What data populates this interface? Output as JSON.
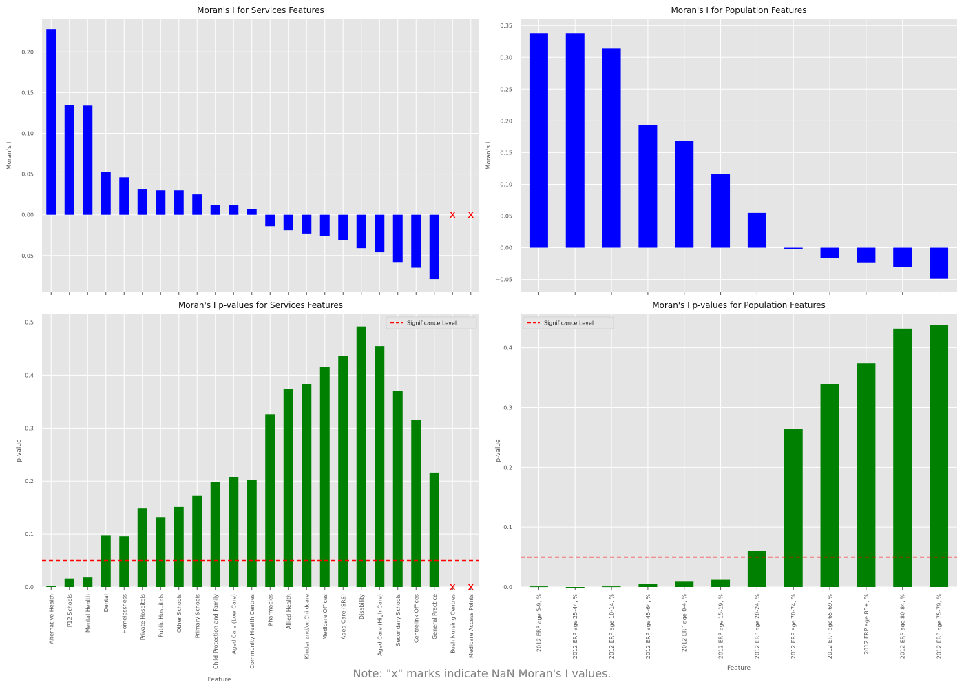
{
  "note": "Note: \"x\" marks indicate NaN Moran's I values.",
  "colors": {
    "background": "#e5e5e5",
    "grid": "#ffffff",
    "moran_bar": "#0000ff",
    "pvalue_bar": "#008000",
    "nan_marker": "#ff0000",
    "significance_line": "#ff0000",
    "text": "#555555"
  },
  "chart_data": [
    {
      "type": "bar",
      "title": "Moran's I for Services Features",
      "xlabel": "",
      "ylabel": "Moran's I",
      "ylim": [
        -0.095,
        0.24
      ],
      "yticks": [
        -0.05,
        0.0,
        0.05,
        0.1,
        0.15,
        0.2
      ],
      "ytick_labels": [
        "−0.05",
        "0.00",
        "0.05",
        "0.10",
        "0.15",
        "0.20"
      ],
      "grid": true,
      "nan_marker": "x",
      "categories": [
        "Alternative Health",
        "P12 Schools",
        "Mental Health",
        "Dental",
        "Homelessness",
        "Private Hospitals",
        "Public Hospitals",
        "Other Schools",
        "Primary Schools",
        "Child Protection and Family",
        "Aged Care (Low Care)",
        "Community Health Centres",
        "Pharmacies",
        "Allied Health",
        "Kinder and/or Childcare",
        "Medicare Offices",
        "Aged Care (SRS)",
        "Disability",
        "Aged Care (High Care)",
        "Secondary Schools",
        "Centrelink Offices",
        "General Practice",
        "Bush Nursing Centres",
        "Medicare Access Points"
      ],
      "values": [
        0.228,
        0.135,
        0.134,
        0.053,
        0.046,
        0.031,
        0.03,
        0.03,
        0.025,
        0.012,
        0.012,
        0.007,
        -0.014,
        -0.019,
        -0.023,
        -0.026,
        -0.031,
        -0.041,
        -0.046,
        -0.058,
        -0.065,
        -0.079,
        null,
        null
      ]
    },
    {
      "type": "bar",
      "title": "Moran's I for Population Features",
      "xlabel": "",
      "ylabel": "Moran's I",
      "ylim": [
        -0.07,
        0.36
      ],
      "yticks": [
        -0.05,
        0.0,
        0.05,
        0.1,
        0.15,
        0.2,
        0.25,
        0.3,
        0.35
      ],
      "ytick_labels": [
        "−0.05",
        "0.00",
        "0.05",
        "0.10",
        "0.15",
        "0.20",
        "0.25",
        "0.30",
        "0.35"
      ],
      "grid": true,
      "categories": [
        "2012 ERP age 5-9, %",
        "2012 ERP age 25-44, %",
        "2012 ERP age 10-14, %",
        "2012 ERP age 45-64, %",
        "2012 ERP age 0-4, %",
        "2012 ERP age 15-19, %",
        "2012 ERP age 20-24, %",
        "2012 ERP age 70-74, %",
        "2012 ERP age 65-69, %",
        "2012 ERP age 85+, %",
        "2012 ERP age 80-84, %",
        "2012 ERP age 75-79, %"
      ],
      "values": [
        0.338,
        0.338,
        0.314,
        0.193,
        0.168,
        0.116,
        0.055,
        -0.002,
        -0.016,
        -0.023,
        -0.03,
        -0.049
      ]
    },
    {
      "type": "bar",
      "title": "Moran's I p-values for Services Features",
      "xlabel": "Feature",
      "ylabel": "p-value",
      "ylim": [
        0,
        0.515
      ],
      "yticks": [
        0,
        0.1,
        0.2,
        0.3,
        0.4,
        0.5
      ],
      "ytick_labels": [
        "0.0",
        "0.1",
        "0.2",
        "0.3",
        "0.4",
        "0.5"
      ],
      "grid": true,
      "reference_line": {
        "y": 0.05,
        "label": "Significance Level",
        "style": "dashed"
      },
      "legend_position": "top-right",
      "nan_marker": "x",
      "categories": [
        "Alternative Health",
        "P12 Schools",
        "Mental Health",
        "Dental",
        "Homelessness",
        "Private Hospitals",
        "Public Hospitals",
        "Other Schools",
        "Primary Schools",
        "Child Protection and Family",
        "Aged Care (Low Care)",
        "Community Health Centres",
        "Pharmacies",
        "Allied Health",
        "Kinder and/or Childcare",
        "Medicare Offices",
        "Aged Care (SRS)",
        "Disability",
        "Aged Care (High Care)",
        "Secondary Schools",
        "Centrelink Offices",
        "General Practice",
        "Bush Nursing Centres",
        "Medicare Access Points"
      ],
      "values": [
        0.002,
        0.016,
        0.018,
        0.097,
        0.096,
        0.148,
        0.131,
        0.151,
        0.172,
        0.199,
        0.208,
        0.202,
        0.326,
        0.374,
        0.383,
        0.416,
        0.436,
        0.492,
        0.455,
        0.37,
        0.315,
        0.216,
        null,
        null
      ]
    },
    {
      "type": "bar",
      "title": "Moran's I p-values for Population Features",
      "xlabel": "Feature",
      "ylabel": "p-value",
      "ylim": [
        0,
        0.456
      ],
      "yticks": [
        0,
        0.1,
        0.2,
        0.3,
        0.4
      ],
      "ytick_labels": [
        "0.0",
        "0.1",
        "0.2",
        "0.3",
        "0.4"
      ],
      "grid": true,
      "reference_line": {
        "y": 0.05,
        "label": "Significance Level",
        "style": "dashed"
      },
      "legend_position": "top-left",
      "categories": [
        "2012 ERP age 5-9, %",
        "2012 ERP age 25-44, %",
        "2012 ERP age 10-14, %",
        "2012 ERP age 45-64, %",
        "2012 ERP age 0-4, %",
        "2012 ERP age 15-19, %",
        "2012 ERP age 20-24, %",
        "2012 ERP age 70-74, %",
        "2012 ERP age 65-69, %",
        "2012 ERP age 85+, %",
        "2012 ERP age 80-84, %",
        "2012 ERP age 75-79, %"
      ],
      "values": [
        0.001,
        0.0,
        0.001,
        0.005,
        0.01,
        0.012,
        0.06,
        0.264,
        0.339,
        0.374,
        0.432,
        0.438
      ]
    }
  ]
}
